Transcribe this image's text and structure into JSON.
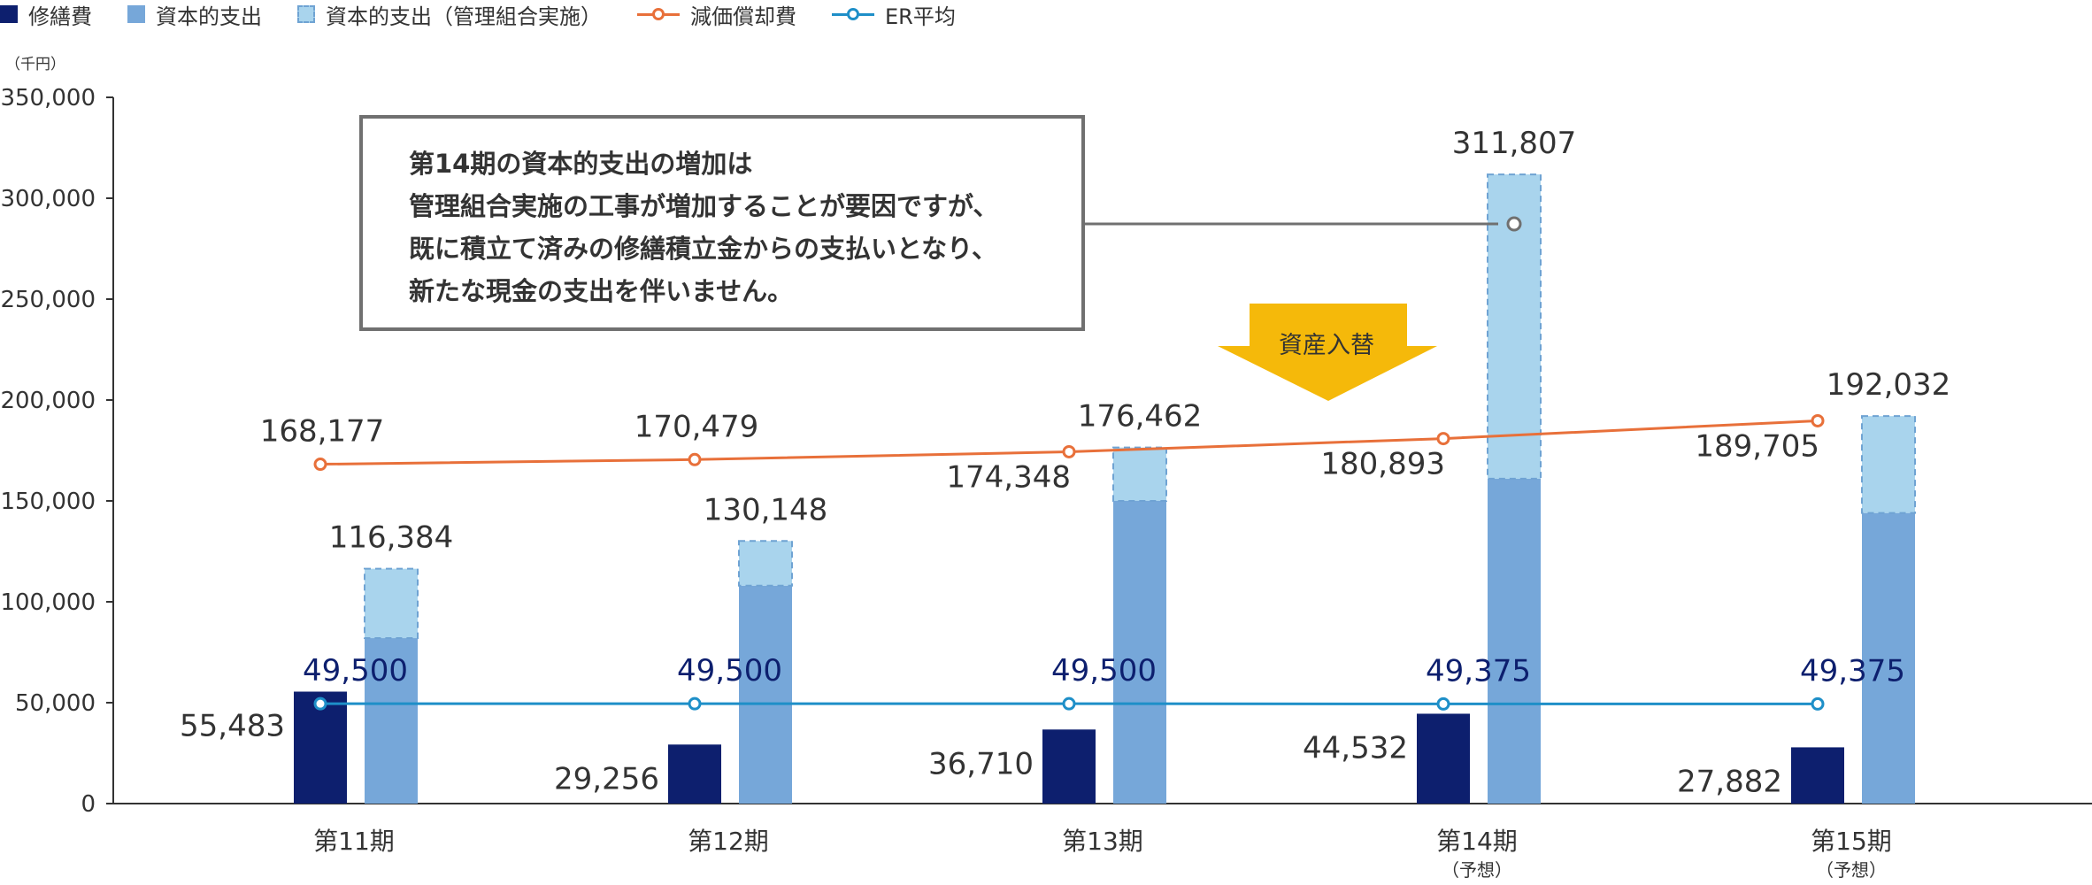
{
  "legend": {
    "items": [
      {
        "label": "修繕費",
        "kind": "bar",
        "color": "#0d1f6e"
      },
      {
        "label": "資本的支出",
        "kind": "bar",
        "color": "#76a7d9"
      },
      {
        "label": "資本的支出（管理組合実施）",
        "kind": "bar-dashed",
        "color": "#a9d4ed"
      },
      {
        "label": "減価償却費",
        "kind": "line",
        "color": "#e8703a"
      },
      {
        "label": "ER平均",
        "kind": "line",
        "color": "#1e8fc8"
      }
    ]
  },
  "unit_label": "（千円）",
  "callout": {
    "lines": [
      "第14期の資本的支出の増加は",
      "管理組合実施の工事が増加することが要因ですが、",
      "既に積立て済みの修繕積立金からの支払いとなり、",
      "新たな現金の支出を伴いません。"
    ]
  },
  "asset_swap_label": "資産入替",
  "chart_data": {
    "type": "bar",
    "ylim": [
      0,
      350000
    ],
    "yticks": [
      "0",
      "50,000",
      "100,000",
      "150,000",
      "200,000",
      "250,000",
      "300,000",
      "350,000"
    ],
    "categories": [
      "第11期",
      "第12期",
      "第13期",
      "第14期",
      "第15期"
    ],
    "category_notes": [
      "",
      "",
      "",
      "（予想）",
      "（予想）"
    ],
    "series": [
      {
        "name": "修繕費",
        "type": "bar",
        "color": "#0d1f6e",
        "values": [
          55483,
          29256,
          36710,
          44532,
          27882
        ],
        "labels": [
          "55,483",
          "29,256",
          "36,710",
          "44,532",
          "27,882"
        ]
      },
      {
        "name": "資本的支出",
        "type": "bar-stacked",
        "color": "#76a7d9",
        "values": [
          82000,
          108000,
          150000,
          161000,
          144000
        ]
      },
      {
        "name": "資本的支出（管理組合実施）",
        "type": "bar-stacked",
        "color": "#a9d4ed",
        "values": [
          34384,
          22148,
          26462,
          150807,
          48032
        ]
      },
      {
        "name": "減価償却費",
        "type": "line",
        "color": "#e8703a",
        "values": [
          168177,
          170479,
          174348,
          180893,
          189705
        ],
        "labels": [
          "168,177",
          "170,479",
          "174,348",
          "180,893",
          "189,705"
        ]
      },
      {
        "name": "ER平均",
        "type": "line",
        "color": "#1e8fc8",
        "values": [
          49500,
          49500,
          49500,
          49375,
          49375
        ],
        "labels": [
          "49,500",
          "49,500",
          "49,500",
          "49,375",
          "49,375"
        ]
      }
    ],
    "capex_total_labels": [
      "116,384",
      "130,148",
      "176,462",
      "311,807",
      "192,032"
    ]
  }
}
